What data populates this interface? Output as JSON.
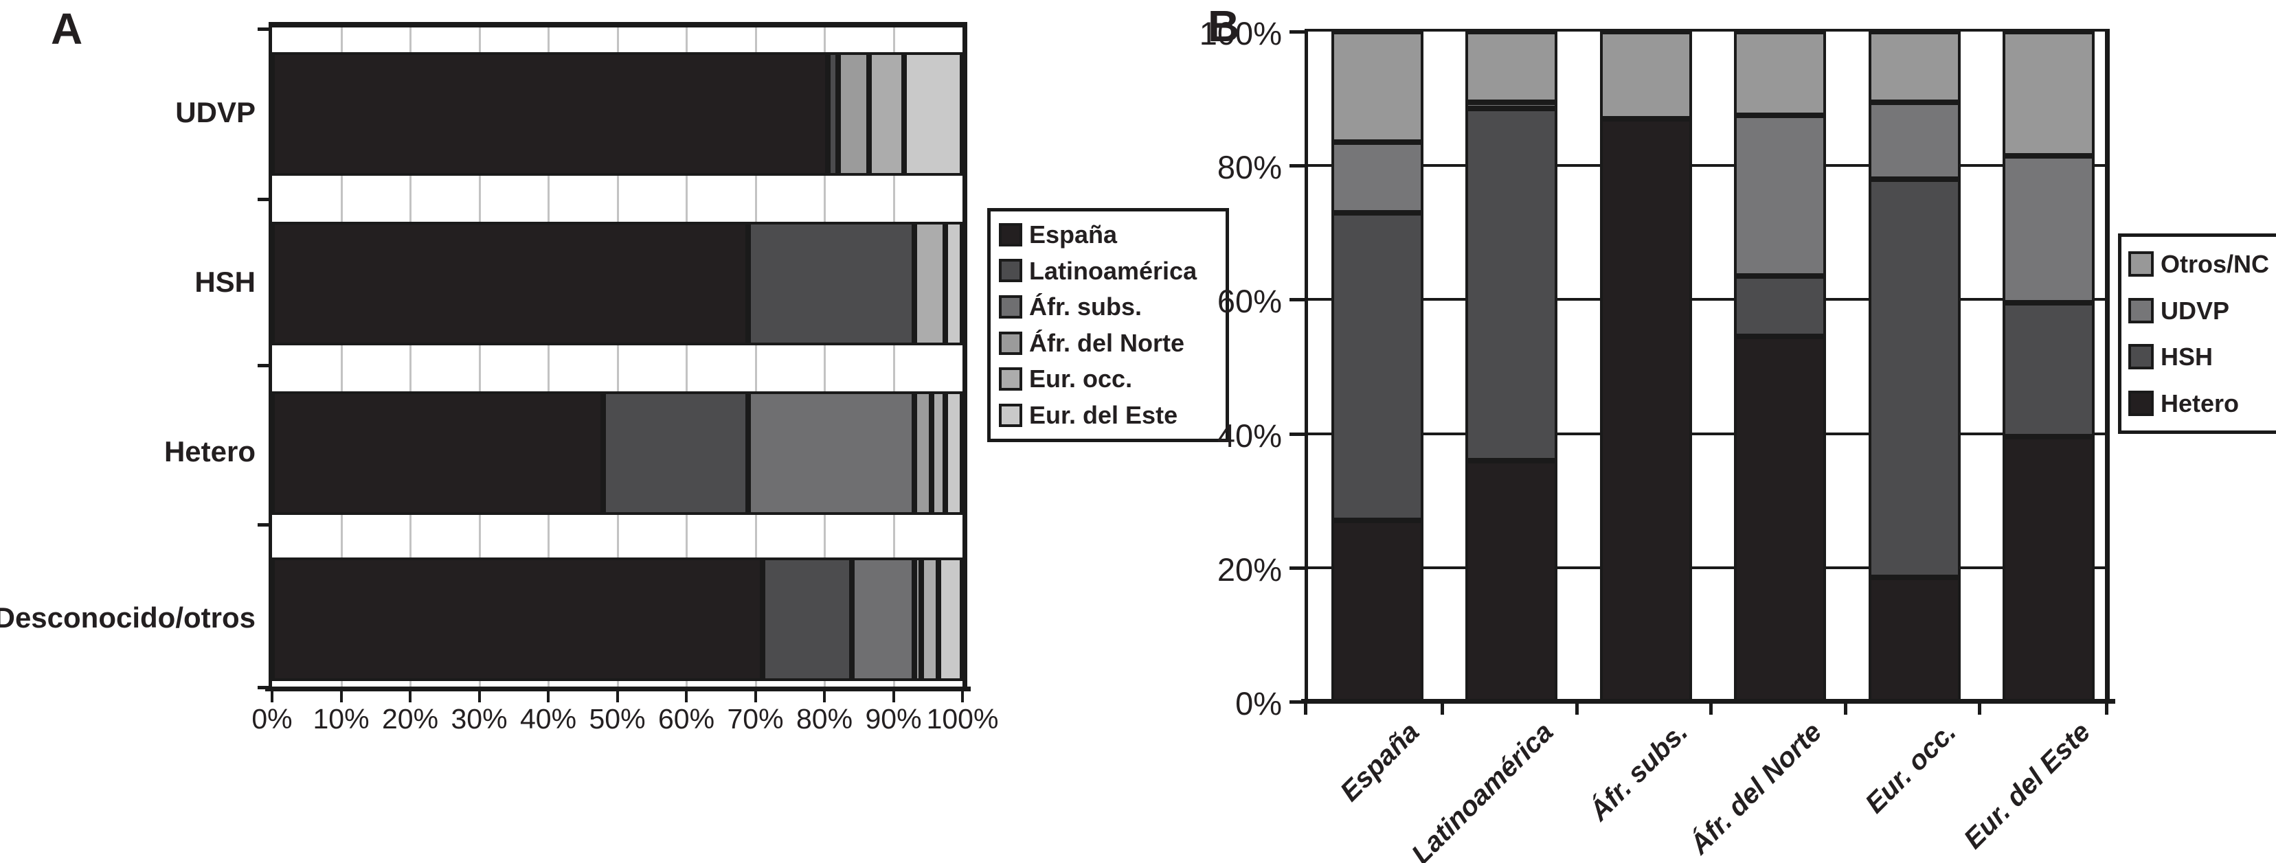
{
  "panels": {
    "a_label": "A",
    "b_label": "B"
  },
  "chart_data": [
    {
      "id": "A",
      "type": "bar",
      "orientation": "horizontal",
      "stacked": true,
      "unit": "percent",
      "categories": [
        "UDVP",
        "HSH",
        "Hetero",
        "Desconocido/otros"
      ],
      "series": [
        {
          "name": "España",
          "color": "#231f20",
          "values": [
            80.5,
            69.0,
            48.0,
            71.0
          ]
        },
        {
          "name": "Latinoamérica",
          "color": "#4c4c4e",
          "values": [
            1.5,
            24.0,
            21.0,
            13.0
          ]
        },
        {
          "name": "Áfr. subs.",
          "color": "#6f6f71",
          "values": [
            0.0,
            0.0,
            24.0,
            9.0
          ]
        },
        {
          "name": "Áfr. del Norte",
          "color": "#9b9b9b",
          "values": [
            4.5,
            0.0,
            2.5,
            1.0
          ]
        },
        {
          "name": "Eur. occ.",
          "color": "#acacac",
          "values": [
            5.0,
            4.5,
            2.0,
            2.5
          ]
        },
        {
          "name": "Eur. del Este",
          "color": "#c9c9c9",
          "values": [
            8.5,
            2.5,
            2.5,
            3.5
          ]
        }
      ],
      "x_ticks": [
        "0%",
        "10%",
        "20%",
        "30%",
        "40%",
        "50%",
        "60%",
        "70%",
        "80%",
        "90%",
        "100%"
      ],
      "xlim": [
        0,
        100
      ],
      "grid": "vertical-light-gray",
      "legend_position": "right"
    },
    {
      "id": "B",
      "type": "bar",
      "orientation": "vertical",
      "stacked": true,
      "unit": "percent",
      "categories": [
        "España",
        "Latinoamérica",
        "Áfr. subs.",
        "Áfr. del Norte",
        "Eur. occ.",
        "Eur. del Este"
      ],
      "series": [
        {
          "name": "Hetero",
          "color": "#231f20",
          "values": [
            27.0,
            36.0,
            87.0,
            54.5,
            18.5,
            39.5
          ]
        },
        {
          "name": "HSH",
          "color": "#4c4c4e",
          "values": [
            46.0,
            52.5,
            0.0,
            9.0,
            59.5,
            20.0
          ]
        },
        {
          "name": "UDVP",
          "color": "#767678",
          "values": [
            10.5,
            1.0,
            0.0,
            24.0,
            11.5,
            22.0
          ]
        },
        {
          "name": "Otros/NC",
          "color": "#989898",
          "values": [
            16.5,
            10.5,
            13.0,
            12.5,
            10.5,
            18.5
          ]
        }
      ],
      "legend_order": [
        "Otros/NC",
        "UDVP",
        "HSH",
        "Hetero"
      ],
      "y_ticks": [
        "0%",
        "20%",
        "40%",
        "60%",
        "80%",
        "100%"
      ],
      "ylim": [
        0,
        100
      ],
      "grid": "horizontal-black",
      "legend_position": "right"
    }
  ]
}
